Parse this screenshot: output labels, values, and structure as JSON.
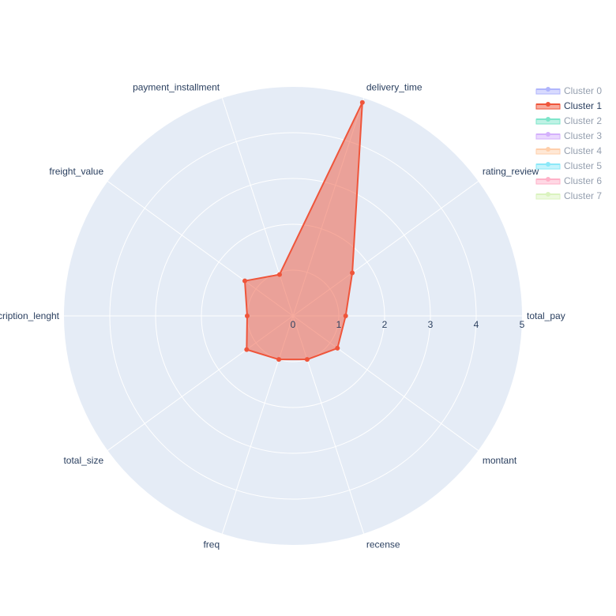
{
  "chart_data": {
    "type": "radar",
    "axes": [
      "total_pay",
      "rating_review",
      "delivery_time",
      "payment_installment",
      "freight_value",
      "description_lenght",
      "total_size",
      "freq",
      "recense",
      "montant"
    ],
    "rlim": [
      0,
      5
    ],
    "r_ticks": [
      "0",
      "1",
      "2",
      "3",
      "4",
      "5"
    ],
    "grid": true,
    "legend_position": "top-right",
    "series": [
      {
        "name": "Cluster 0",
        "color": "#636efa",
        "visible": false,
        "values": []
      },
      {
        "name": "Cluster 1",
        "color": "#ef553b",
        "visible": true,
        "values": [
          1.15,
          1.6,
          4.9,
          0.95,
          1.3,
          1.0,
          1.25,
          1.0,
          1.0,
          1.2
        ]
      },
      {
        "name": "Cluster 2",
        "color": "#00cc96",
        "visible": false,
        "values": []
      },
      {
        "name": "Cluster 3",
        "color": "#ab63fa",
        "visible": false,
        "values": []
      },
      {
        "name": "Cluster 4",
        "color": "#ffa15a",
        "visible": false,
        "values": []
      },
      {
        "name": "Cluster 5",
        "color": "#19d3f3",
        "visible": false,
        "values": []
      },
      {
        "name": "Cluster 6",
        "color": "#ff6692",
        "visible": false,
        "values": []
      },
      {
        "name": "Cluster 7",
        "color": "#b6e880",
        "visible": false,
        "values": []
      }
    ]
  },
  "colors": {
    "polar_bg": "#e5ecf6",
    "grid": "#ffffff",
    "text": "#2a3f5f",
    "legend_hidden_text": "#aab3c0"
  }
}
